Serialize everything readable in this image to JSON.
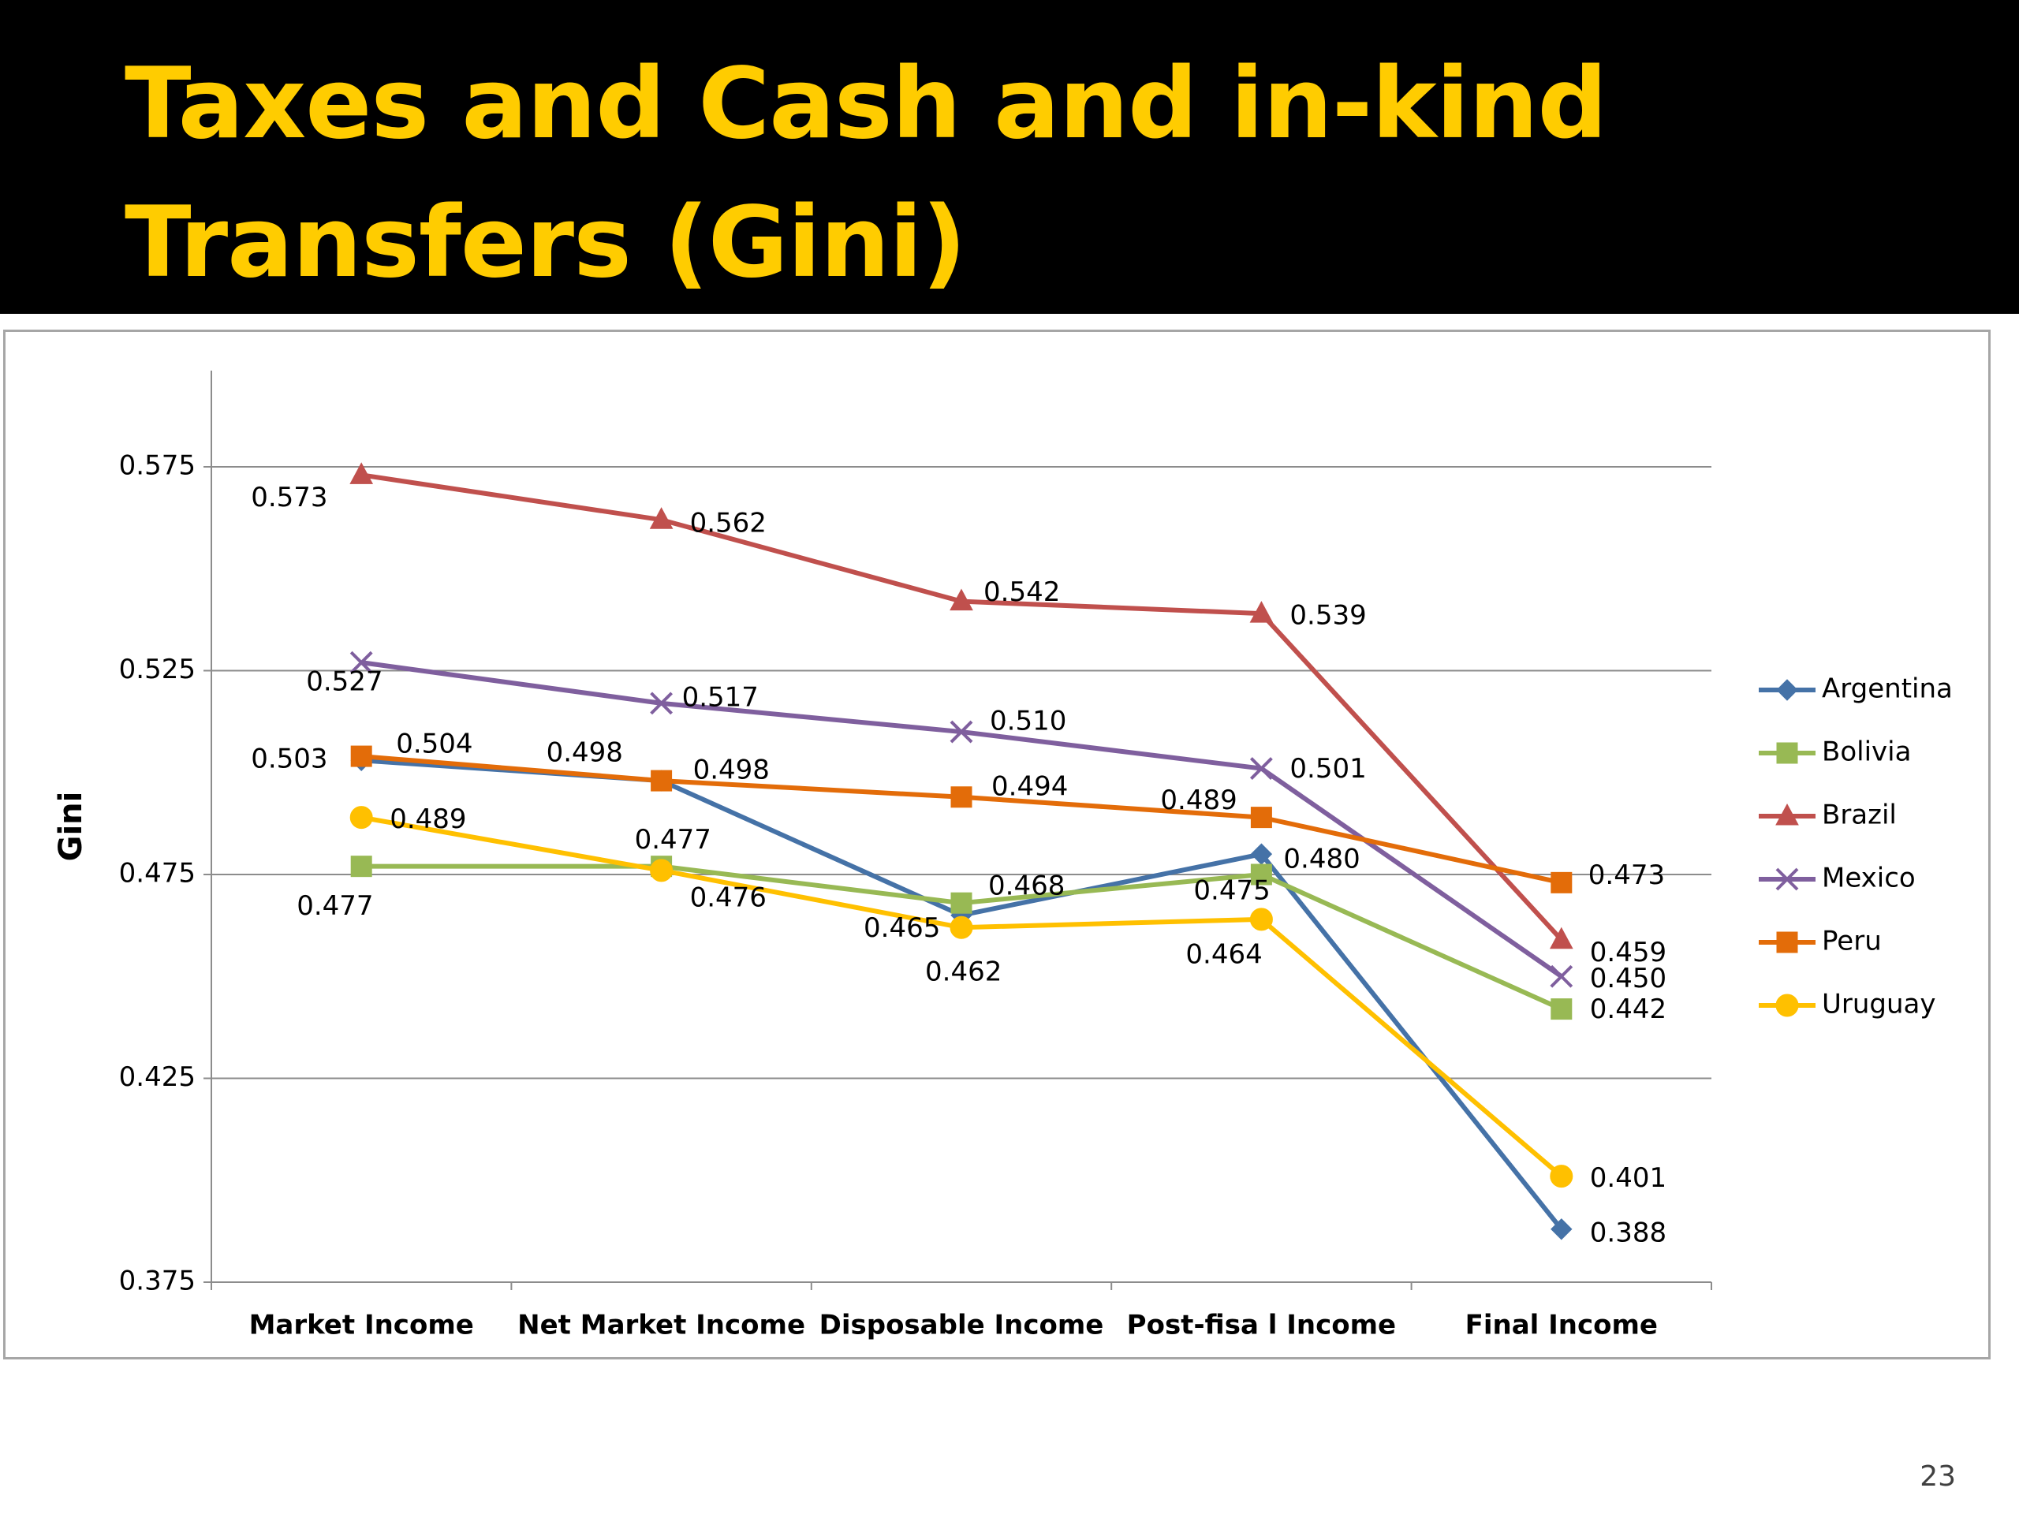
{
  "slide": {
    "title_line1": "Taxes and Cash and in-kind",
    "title_line2": "Transfers (Gini)",
    "page_number": "23"
  },
  "colors": {
    "title_bar_bg": "#000000",
    "title_text": "#ffcc00",
    "grid": "#8c8c8c",
    "axis": "#8c8c8c"
  },
  "chart_data": {
    "type": "line",
    "title": "",
    "xlabel": "",
    "ylabel": "Gini",
    "ylim": [
      0.375,
      0.575
    ],
    "yticks": [
      0.375,
      0.425,
      0.475,
      0.525,
      0.575
    ],
    "ytick_labels": [
      "0.375",
      "0.425",
      "0.475",
      "0.525",
      "0.575"
    ],
    "grid": "horizontal",
    "legend_position": "right",
    "categories": [
      "Market Income",
      "Net Market Income",
      "Disposable Income",
      "Post-fisa l Income",
      "Final Income"
    ],
    "series": [
      {
        "name": "Argentina",
        "color": "#4572a7",
        "marker": "diamond",
        "values": [
          0.503,
          0.498,
          0.465,
          0.48,
          0.388
        ]
      },
      {
        "name": "Bolivia",
        "color": "#98b954",
        "marker": "square",
        "values": [
          0.477,
          0.477,
          0.468,
          0.475,
          0.442
        ]
      },
      {
        "name": "Brazil",
        "color": "#c0504d",
        "marker": "triangle",
        "values": [
          0.573,
          0.562,
          0.542,
          0.539,
          0.459
        ]
      },
      {
        "name": "Mexico",
        "color": "#7f5f9e",
        "marker": "x",
        "values": [
          0.527,
          0.517,
          0.51,
          0.501,
          0.45
        ]
      },
      {
        "name": "Peru",
        "color": "#e36c09",
        "marker": "square",
        "values": [
          0.504,
          0.498,
          0.494,
          0.489,
          0.473
        ]
      },
      {
        "name": "Uruguay",
        "color": "#ffc000",
        "marker": "circle",
        "values": [
          0.489,
          0.476,
          0.462,
          0.464,
          0.401
        ]
      }
    ],
    "data_labels": [
      {
        "series": "Brazil",
        "category": "Market Income",
        "text": "0.573"
      },
      {
        "series": "Brazil",
        "category": "Net Market Income",
        "text": "0.562"
      },
      {
        "series": "Brazil",
        "category": "Disposable Income",
        "text": "0.542"
      },
      {
        "series": "Brazil",
        "category": "Post-fisa l Income",
        "text": "0.539"
      },
      {
        "series": "Brazil",
        "category": "Final Income",
        "text": "0.459"
      },
      {
        "series": "Mexico",
        "category": "Market Income",
        "text": "0.527"
      },
      {
        "series": "Mexico",
        "category": "Net Market Income",
        "text": "0.517"
      },
      {
        "series": "Mexico",
        "category": "Disposable Income",
        "text": "0.510"
      },
      {
        "series": "Mexico",
        "category": "Post-fisa l Income",
        "text": "0.501"
      },
      {
        "series": "Mexico",
        "category": "Final Income",
        "text": "0.450"
      },
      {
        "series": "Argentina",
        "category": "Market Income",
        "text": "0.503"
      },
      {
        "series": "Argentina",
        "category": "Net Market Income",
        "text": "0.498"
      },
      {
        "series": "Argentina",
        "category": "Disposable Income",
        "text": "0.465"
      },
      {
        "series": "Argentina",
        "category": "Post-fisa l Income",
        "text": "0.480"
      },
      {
        "series": "Argentina",
        "category": "Final Income",
        "text": "0.388"
      },
      {
        "series": "Peru",
        "category": "Market Income",
        "text": "0.504"
      },
      {
        "series": "Peru",
        "category": "Net Market Income",
        "text": "0.498"
      },
      {
        "series": "Peru",
        "category": "Disposable Income",
        "text": "0.494"
      },
      {
        "series": "Peru",
        "category": "Post-fisa l Income",
        "text": "0.489"
      },
      {
        "series": "Peru",
        "category": "Final Income",
        "text": "0.473"
      },
      {
        "series": "Uruguay",
        "category": "Market Income",
        "text": "0.489"
      },
      {
        "series": "Uruguay",
        "category": "Net Market Income",
        "text": "0.476"
      },
      {
        "series": "Uruguay",
        "category": "Disposable Income",
        "text": "0.462"
      },
      {
        "series": "Uruguay",
        "category": "Post-fisa l Income",
        "text": "0.464"
      },
      {
        "series": "Uruguay",
        "category": "Final Income",
        "text": "0.401"
      },
      {
        "series": "Bolivia",
        "category": "Market Income",
        "text": "0.477"
      },
      {
        "series": "Bolivia",
        "category": "Net Market Income",
        "text": "0.477"
      },
      {
        "series": "Bolivia",
        "category": "Disposable Income",
        "text": "0.468"
      },
      {
        "series": "Bolivia",
        "category": "Post-fisa l Income",
        "text": "0.475"
      },
      {
        "series": "Bolivia",
        "category": "Final Income",
        "text": "0.442"
      }
    ]
  }
}
